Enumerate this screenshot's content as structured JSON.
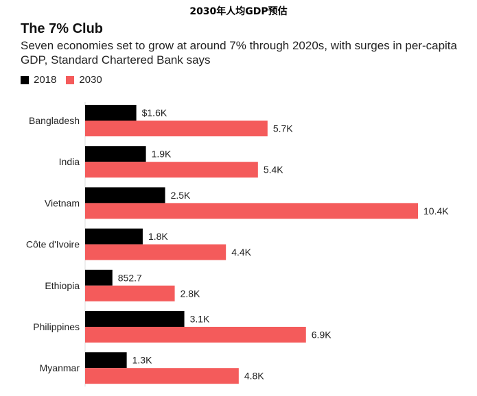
{
  "page": {
    "heading": "2030年人均GDP预估"
  },
  "chart_data": {
    "type": "bar",
    "orientation": "horizontal",
    "title": "The 7% Club",
    "subtitle": "Seven economies set to grow at around 7% through 2020s, with surges in per-capita GDP, Standard Chartered Bank says",
    "categories": [
      "Bangladesh",
      "India",
      "Vietnam",
      "Côte d'Ivoire",
      "Ethiopia",
      "Philippines",
      "Myanmar"
    ],
    "series": [
      {
        "name": "2018",
        "color": "#000000",
        "values": [
          1600,
          1900,
          2500,
          1800,
          852.7,
          3100,
          1300
        ],
        "labels": [
          "$1.6K",
          "1.9K",
          "2.5K",
          "1.8K",
          "852.7",
          "3.1K",
          "1.3K"
        ]
      },
      {
        "name": "2030",
        "color": "#f45b5b",
        "values": [
          5700,
          5400,
          10400,
          4400,
          2800,
          6900,
          4800
        ],
        "labels": [
          "5.7K",
          "5.4K",
          "10.4K",
          "4.4K",
          "2.8K",
          "6.9K",
          "4.8K"
        ]
      }
    ],
    "xlim": [
      0,
      10400
    ],
    "grid": false,
    "legend_position": "top-left"
  }
}
